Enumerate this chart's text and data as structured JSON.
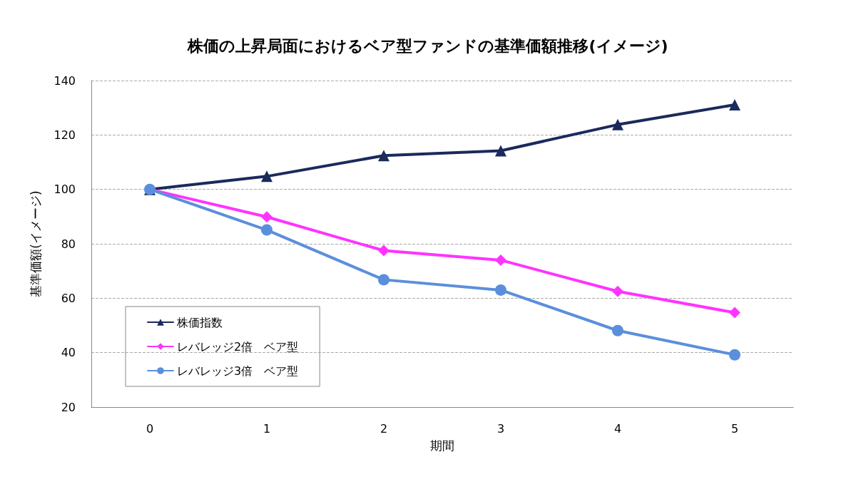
{
  "chart_data": {
    "type": "line",
    "title": "株価の上昇局面におけるベア型ファンドの基準価額推移(イメージ)",
    "xlabel": "期間",
    "ylabel": "基準価額(イメージ)",
    "categories": [
      "0",
      "1",
      "2",
      "3",
      "4",
      "5"
    ],
    "series": [
      {
        "name": "株価指数",
        "color": "#1b2a5c",
        "marker": "triangle",
        "values": [
          100,
          104.8,
          112.4,
          114.2,
          123.8,
          131.1
        ]
      },
      {
        "name": "レバレッジ2倍　ベア型",
        "color": "#ff33ff",
        "marker": "diamond",
        "values": [
          100,
          89.9,
          77.5,
          74,
          62.5,
          54.7
        ]
      },
      {
        "name": "レバレッジ3倍　ベア型",
        "color": "#5b8fdc",
        "marker": "circle",
        "values": [
          100,
          85.1,
          66.8,
          63,
          48.1,
          39.2
        ]
      }
    ],
    "ylim": [
      20,
      140
    ],
    "yticks": [
      20,
      40,
      60,
      80,
      100,
      120,
      140
    ],
    "grid": "y",
    "legend": "bottom left",
    "line_style": "solid"
  }
}
